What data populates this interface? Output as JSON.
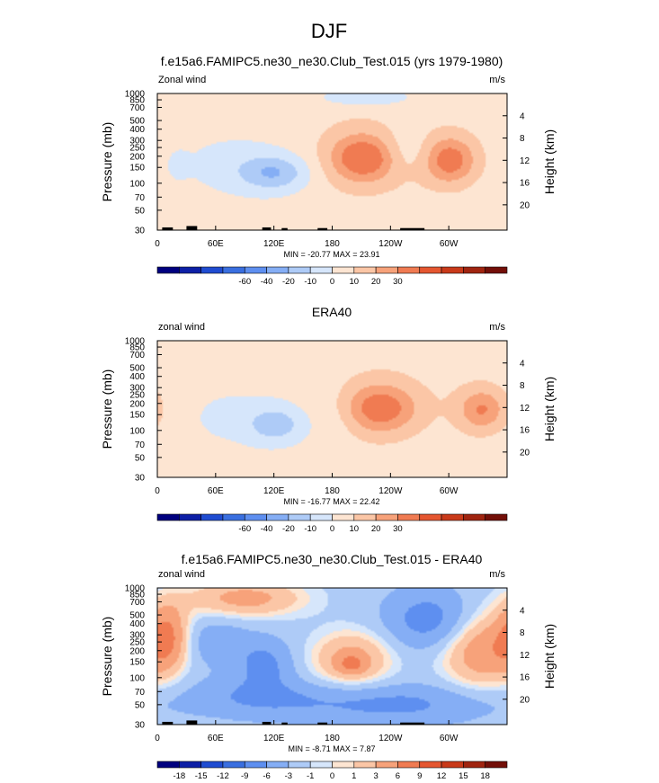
{
  "figure": {
    "title": "DJF"
  },
  "chart_data": [
    {
      "type": "heatmap",
      "title": "f.e15a6.FAMIPC5.ne30_ne30.Club_Test.015 (yrs 1979-1980)",
      "variable_label": "Zonal wind",
      "units": "m/s",
      "ylabel_left": "Pressure (mb)",
      "ylabel_right": "Height (km)",
      "pressure_ticks": [
        "30",
        "50",
        "70",
        "100",
        "150",
        "200",
        "250",
        "300",
        "400",
        "500",
        "700",
        "850",
        "1000"
      ],
      "height_ticks": [
        "20",
        "16",
        "12",
        "8",
        "4"
      ],
      "x_ticks": [
        "0",
        "60E",
        "120E",
        "180",
        "120W",
        "60W"
      ],
      "stats": "MIN = -20.77  MAX = 23.91",
      "colorbar_labels": [
        "-60",
        "-40",
        "-20",
        "-10",
        "0",
        "10",
        "20",
        "30"
      ],
      "colorbar_colors": [
        "#00007f",
        "#0d1fa6",
        "#1f4cd1",
        "#3a6fe0",
        "#5e8ff0",
        "#85aef5",
        "#aecbf7",
        "#d6e6fb",
        "#fde5d2",
        "#fbc6a6",
        "#f7a27a",
        "#f07b52",
        "#e55630",
        "#c93a1a",
        "#a02410",
        "#730f08"
      ],
      "range": {
        "x": [
          0,
          360
        ],
        "p": [
          1000,
          30
        ]
      },
      "background_value": 3,
      "topography": true,
      "features": [
        {
          "lon": 120,
          "p": 130,
          "w": 25,
          "hp": 0.18,
          "amp": -22
        },
        {
          "lon": 80,
          "p": 160,
          "w": 40,
          "hp": 0.3,
          "amp": -6
        },
        {
          "lon": 213,
          "p": 190,
          "w": 22,
          "hp": 0.22,
          "amp": 27
        },
        {
          "lon": 213,
          "p": 200,
          "w": 40,
          "hp": 0.45,
          "amp": 14
        },
        {
          "lon": 302,
          "p": 180,
          "w": 17,
          "hp": 0.22,
          "amp": 24
        },
        {
          "lon": 302,
          "p": 190,
          "w": 30,
          "hp": 0.4,
          "amp": 10
        },
        {
          "lon": 90,
          "p": 790,
          "w": 60,
          "hp": 0.18,
          "amp": 4
        },
        {
          "lon": 255,
          "p": 230,
          "w": 20,
          "hp": 0.25,
          "amp": -10
        },
        {
          "lon": 210,
          "p": 900,
          "w": 40,
          "hp": 0.12,
          "amp": -9
        },
        {
          "lon": 20,
          "p": 160,
          "w": 8,
          "hp": 0.15,
          "amp": -5
        }
      ]
    },
    {
      "type": "heatmap",
      "title": "ERA40",
      "variable_label": "zonal wind",
      "units": "m/s",
      "ylabel_left": "Pressure (mb)",
      "ylabel_right": "Height (km)",
      "pressure_ticks": [
        "30",
        "50",
        "70",
        "100",
        "150",
        "200",
        "250",
        "300",
        "400",
        "500",
        "700",
        "850",
        "1000"
      ],
      "height_ticks": [
        "20",
        "16",
        "12",
        "8",
        "4"
      ],
      "x_ticks": [
        "0",
        "60E",
        "120E",
        "180",
        "120W",
        "60W"
      ],
      "stats": "MIN = -16.77  MAX = 22.42",
      "colorbar_labels": [
        "-60",
        "-40",
        "-20",
        "-10",
        "0",
        "10",
        "20",
        "30"
      ],
      "colorbar_colors": [
        "#00007f",
        "#0d1fa6",
        "#1f4cd1",
        "#3a6fe0",
        "#5e8ff0",
        "#85aef5",
        "#aecbf7",
        "#d6e6fb",
        "#fde5d2",
        "#fbc6a6",
        "#f7a27a",
        "#f07b52",
        "#e55630",
        "#c93a1a",
        "#a02410",
        "#730f08"
      ],
      "range": {
        "x": [
          0,
          360
        ],
        "p": [
          1000,
          30
        ]
      },
      "background_value": 3,
      "topography": false,
      "features": [
        {
          "lon": 122,
          "p": 115,
          "w": 20,
          "hp": 0.18,
          "amp": -18
        },
        {
          "lon": 80,
          "p": 140,
          "w": 40,
          "hp": 0.3,
          "amp": -5
        },
        {
          "lon": 230,
          "p": 175,
          "w": 24,
          "hp": 0.23,
          "amp": 24
        },
        {
          "lon": 230,
          "p": 190,
          "w": 40,
          "hp": 0.45,
          "amp": 12
        },
        {
          "lon": 335,
          "p": 170,
          "w": 16,
          "hp": 0.2,
          "amp": 20
        },
        {
          "lon": 335,
          "p": 180,
          "w": 28,
          "hp": 0.4,
          "amp": 8
        },
        {
          "lon": 185,
          "p": 130,
          "w": 15,
          "hp": 0.35,
          "amp": -4
        },
        {
          "lon": 80,
          "p": 850,
          "w": 50,
          "hp": 0.15,
          "amp": 3
        }
      ]
    },
    {
      "type": "heatmap",
      "title": "f.e15a6.FAMIPC5.ne30_ne30.Club_Test.015 - ERA40",
      "variable_label": "zonal wind",
      "units": "m/s",
      "ylabel_left": "Pressure (mb)",
      "ylabel_right": "Height (km)",
      "pressure_ticks": [
        "30",
        "50",
        "70",
        "100",
        "150",
        "200",
        "250",
        "300",
        "400",
        "500",
        "700",
        "850",
        "1000"
      ],
      "height_ticks": [
        "20",
        "16",
        "12",
        "8",
        "4"
      ],
      "x_ticks": [
        "0",
        "60E",
        "120E",
        "180",
        "120W",
        "60W"
      ],
      "stats": "MIN = -8.71  MAX = 7.87",
      "colorbar_labels": [
        "-18",
        "-15",
        "-12",
        "-9",
        "-6",
        "-3",
        "-1",
        "0",
        "1",
        "3",
        "6",
        "9",
        "12",
        "15",
        "18"
      ],
      "colorbar_colors": [
        "#00007f",
        "#0d1fa6",
        "#1f4cd1",
        "#3a6fe0",
        "#5e8ff0",
        "#85aef5",
        "#aecbf7",
        "#d6e6fb",
        "#fde5d2",
        "#fbc6a6",
        "#f7a27a",
        "#f07b52",
        "#e55630",
        "#c93a1a",
        "#a02410",
        "#730f08"
      ],
      "range": {
        "x": [
          0,
          360
        ],
        "p": [
          1000,
          30
        ]
      },
      "background_value": -2,
      "topography": true,
      "features": [
        {
          "lon": 240,
          "p": 50,
          "w": 70,
          "hp": 0.2,
          "amp": -5
        },
        {
          "lon": 100,
          "p": 60,
          "w": 50,
          "hp": 0.2,
          "amp": -4
        },
        {
          "lon": 200,
          "p": 160,
          "w": 30,
          "hp": 0.3,
          "amp": 6
        },
        {
          "lon": 200,
          "p": 140,
          "w": 10,
          "hp": 0.1,
          "amp": 4
        },
        {
          "lon": 335,
          "p": 200,
          "w": 30,
          "hp": 0.4,
          "amp": 7
        },
        {
          "lon": 10,
          "p": 300,
          "w": 15,
          "hp": 0.35,
          "amp": 7
        },
        {
          "lon": 90,
          "p": 780,
          "w": 45,
          "hp": 0.2,
          "amp": 6
        },
        {
          "lon": 110,
          "p": 140,
          "w": 20,
          "hp": 0.25,
          "amp": -5
        },
        {
          "lon": 280,
          "p": 450,
          "w": 30,
          "hp": 0.3,
          "amp": -6
        },
        {
          "lon": 60,
          "p": 250,
          "w": 25,
          "hp": 0.25,
          "amp": -3
        }
      ]
    }
  ]
}
